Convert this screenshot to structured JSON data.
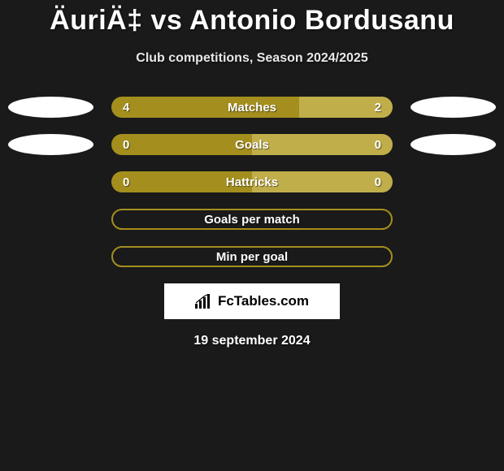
{
  "colors": {
    "background": "#1a1a1a",
    "left_bar": "#a48f1e",
    "right_bar": "#c0ae4a",
    "outline_border": "#a48f1e",
    "text": "#ffffff",
    "badge_bg": "#ffffff",
    "badge_text": "#000000"
  },
  "title": "ÄuriÄ‡ vs Antonio Bordusanu",
  "subtitle": "Club competitions, Season 2024/2025",
  "rows": [
    {
      "label": "Matches",
      "left_value": "4",
      "right_value": "2",
      "left_pct": 66.7,
      "has_left_ellipse": true,
      "has_right_ellipse": true
    },
    {
      "label": "Goals",
      "left_value": "0",
      "right_value": "0",
      "left_pct": 50,
      "has_left_ellipse": true,
      "has_right_ellipse": true
    },
    {
      "label": "Hattricks",
      "left_value": "0",
      "right_value": "0",
      "left_pct": 50,
      "has_left_ellipse": false,
      "has_right_ellipse": false
    },
    {
      "label": "Goals per match",
      "left_value": "",
      "right_value": "",
      "left_pct": null,
      "has_left_ellipse": false,
      "has_right_ellipse": false
    },
    {
      "label": "Min per goal",
      "left_value": "",
      "right_value": "",
      "left_pct": null,
      "has_left_ellipse": false,
      "has_right_ellipse": false
    }
  ],
  "badge_text": "FcTables.com",
  "date_text": "19 september 2024",
  "typography": {
    "title_fontsize": 34,
    "subtitle_fontsize": 16,
    "row_label_fontsize": 15,
    "date_fontsize": 16
  }
}
